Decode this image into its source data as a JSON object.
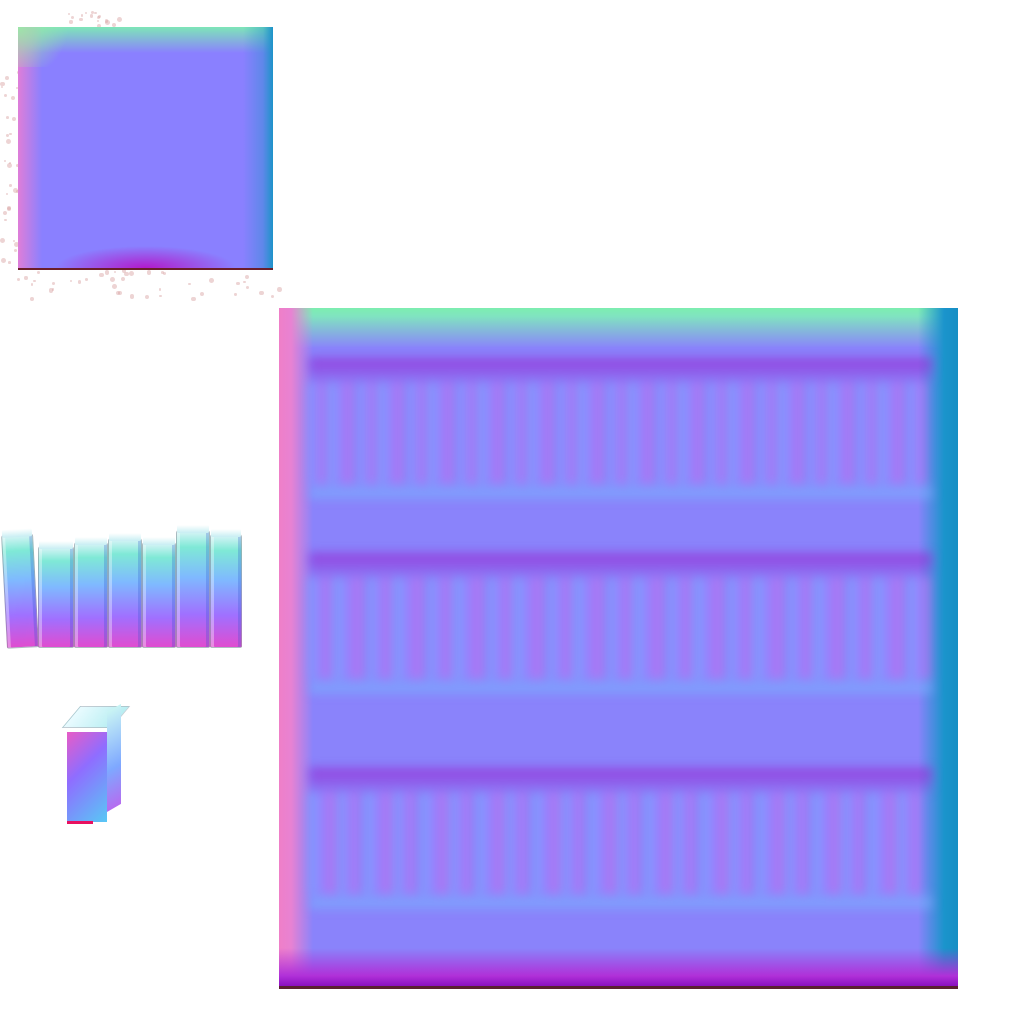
{
  "canvas": {
    "background": "#ffffff"
  },
  "palette": {
    "base_normal": "#8a83fb",
    "edge_top": "#7deeb0",
    "edge_left": "#ef7fc8",
    "edge_right": "#168fc4",
    "edge_bottom": "#8a0fbf"
  },
  "pieces": [
    {
      "name": "small-square-normal-tile"
    },
    {
      "name": "bookshelf-normal-tile",
      "shelf_rows": 3
    },
    {
      "name": "standing-books-row",
      "books": 7
    },
    {
      "name": "single-book"
    }
  ]
}
